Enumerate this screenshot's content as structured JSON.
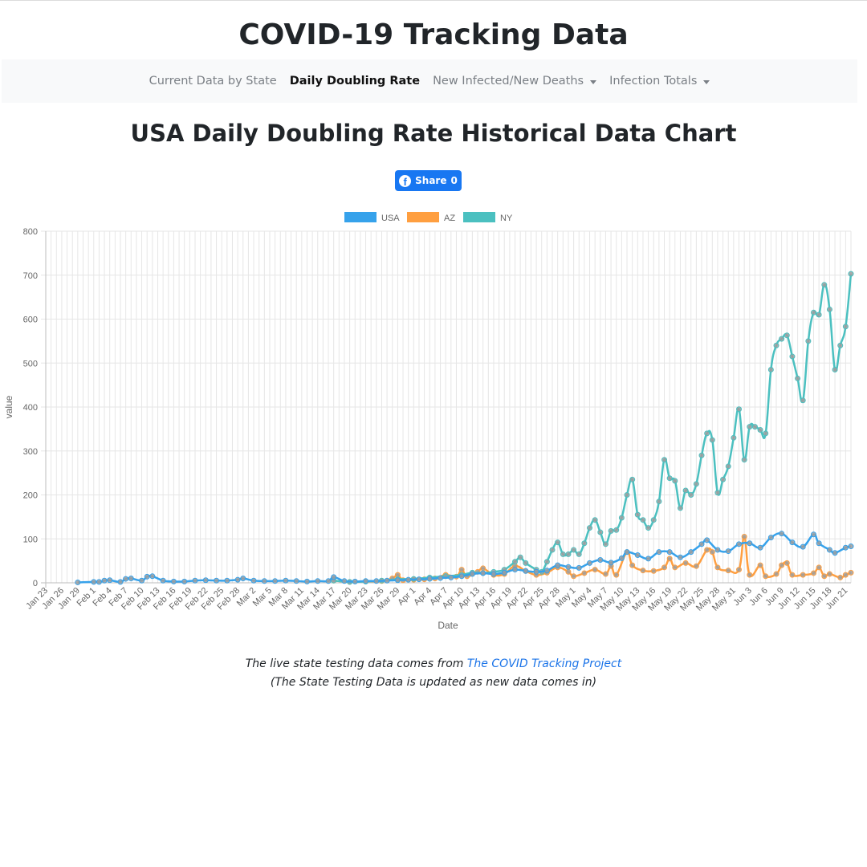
{
  "site": {
    "title": "COVID-19 Tracking Data"
  },
  "nav": {
    "items": [
      {
        "label": "Current Data by State",
        "active": false,
        "dropdown": false
      },
      {
        "label": "Daily Doubling Rate",
        "active": true,
        "dropdown": false
      },
      {
        "label": "New Infected/New Deaths",
        "active": false,
        "dropdown": true
      },
      {
        "label": "Infection Totals",
        "active": false,
        "dropdown": true
      }
    ]
  },
  "page": {
    "title": "USA Daily Doubling Rate Historical Data Chart"
  },
  "share": {
    "label": "Share",
    "count": "0",
    "icon": "facebook-icon"
  },
  "footer": {
    "line1_prefix": "The live state testing data comes from",
    "link_text": "The COVID Tracking Project",
    "line2": "(The State Testing Data is updated as new data comes in)"
  },
  "colors": {
    "usa": "#36a2eb",
    "az": "#ff9f40",
    "ny": "#4bc0c0",
    "link": "#1a73e8",
    "share": "#1877f2"
  },
  "chart_data": {
    "type": "line",
    "xlabel": "Date",
    "ylabel": "value",
    "ylim": [
      0,
      800
    ],
    "yticks": [
      0,
      100,
      200,
      300,
      400,
      500,
      600,
      700,
      800
    ],
    "grid": true,
    "legend_position": "top",
    "x_tick_labels": [
      "Jan 23",
      "Jan 26",
      "Jan 29",
      "Feb 1",
      "Feb 4",
      "Feb 7",
      "Feb 10",
      "Feb 13",
      "Feb 16",
      "Feb 19",
      "Feb 22",
      "Feb 25",
      "Feb 28",
      "Mar 2",
      "Mar 5",
      "Mar 8",
      "Mar 11",
      "Mar 14",
      "Mar 17",
      "Mar 20",
      "Mar 23",
      "Mar 26",
      "Mar 29",
      "Apr 1",
      "Apr 4",
      "Apr 7",
      "Apr 10",
      "Apr 13",
      "Apr 16",
      "Apr 19",
      "Apr 22",
      "Apr 25",
      "Apr 28",
      "May 1",
      "May 4",
      "May 7",
      "May 10",
      "May 13",
      "May 16",
      "May 19",
      "May 22",
      "May 25",
      "May 28",
      "May 31",
      "Jun 3",
      "Jun 6",
      "Jun 9",
      "Jun 12",
      "Jun 15",
      "Jun 18",
      "Jun 21"
    ],
    "series": [
      {
        "name": "USA",
        "color": "#36a2eb",
        "points": [
          [
            "Jan 29",
            1
          ],
          [
            "Feb 1",
            2
          ],
          [
            "Feb 2",
            2
          ],
          [
            "Feb 3",
            5
          ],
          [
            "Feb 4",
            6
          ],
          [
            "Feb 6",
            2
          ],
          [
            "Feb 7",
            9
          ],
          [
            "Feb 8",
            10
          ],
          [
            "Feb 10",
            5
          ],
          [
            "Feb 11",
            14
          ],
          [
            "Feb 12",
            15
          ],
          [
            "Feb 14",
            5
          ],
          [
            "Feb 16",
            3
          ],
          [
            "Feb 18",
            3
          ],
          [
            "Feb 20",
            5
          ],
          [
            "Feb 22",
            6
          ],
          [
            "Feb 24",
            5
          ],
          [
            "Feb 26",
            5
          ],
          [
            "Feb 28",
            7
          ],
          [
            "Feb 29",
            10
          ],
          [
            "Mar 2",
            5
          ],
          [
            "Mar 4",
            4
          ],
          [
            "Mar 6",
            4
          ],
          [
            "Mar 8",
            5
          ],
          [
            "Mar 10",
            4
          ],
          [
            "Mar 12",
            3
          ],
          [
            "Mar 14",
            4
          ],
          [
            "Mar 16",
            4
          ],
          [
            "Mar 17",
            13
          ],
          [
            "Mar 19",
            4
          ],
          [
            "Mar 21",
            3
          ],
          [
            "Mar 23",
            4
          ],
          [
            "Mar 25",
            4
          ],
          [
            "Mar 27",
            5
          ],
          [
            "Mar 29",
            6
          ],
          [
            "Mar 31",
            7
          ],
          [
            "Apr 2",
            8
          ],
          [
            "Apr 4",
            9
          ],
          [
            "Apr 6",
            11
          ],
          [
            "Apr 8",
            12
          ],
          [
            "Apr 10",
            15
          ],
          [
            "Apr 12",
            20
          ],
          [
            "Apr 14",
            22
          ],
          [
            "Apr 16",
            20
          ],
          [
            "Apr 18",
            23
          ],
          [
            "Apr 20",
            30
          ],
          [
            "Apr 22",
            27
          ],
          [
            "Apr 24",
            25
          ],
          [
            "Apr 26",
            28
          ],
          [
            "Apr 28",
            40
          ],
          [
            "Apr 30",
            36
          ],
          [
            "May 2",
            34
          ],
          [
            "May 4",
            45
          ],
          [
            "May 6",
            52
          ],
          [
            "May 8",
            46
          ],
          [
            "May 10",
            56
          ],
          [
            "May 11",
            70
          ],
          [
            "May 13",
            63
          ],
          [
            "May 15",
            55
          ],
          [
            "May 17",
            70
          ],
          [
            "May 19",
            70
          ],
          [
            "May 21",
            58
          ],
          [
            "May 23",
            70
          ],
          [
            "May 25",
            88
          ],
          [
            "May 26",
            97
          ],
          [
            "May 28",
            75
          ],
          [
            "May 30",
            72
          ],
          [
            "Jun 1",
            88
          ],
          [
            "Jun 3",
            90
          ],
          [
            "Jun 5",
            80
          ],
          [
            "Jun 7",
            103
          ],
          [
            "Jun 9",
            112
          ],
          [
            "Jun 11",
            92
          ],
          [
            "Jun 13",
            82
          ],
          [
            "Jun 15",
            110
          ],
          [
            "Jun 16",
            90
          ],
          [
            "Jun 18",
            75
          ],
          [
            "Jun 19",
            68
          ],
          [
            "Jun 21",
            80
          ],
          [
            "Jun 22",
            83
          ]
        ]
      },
      {
        "name": "AZ",
        "color": "#ff9f40",
        "points": [
          [
            "Mar 17",
            5
          ],
          [
            "Mar 20",
            2
          ],
          [
            "Mar 23",
            3
          ],
          [
            "Mar 26",
            4
          ],
          [
            "Mar 28",
            10
          ],
          [
            "Mar 29",
            18
          ],
          [
            "Mar 30",
            6
          ],
          [
            "Apr 1",
            7
          ],
          [
            "Apr 3",
            8
          ],
          [
            "Apr 5",
            10
          ],
          [
            "Apr 7",
            18
          ],
          [
            "Apr 9",
            14
          ],
          [
            "Apr 10",
            30
          ],
          [
            "Apr 11",
            15
          ],
          [
            "Apr 13",
            25
          ],
          [
            "Apr 14",
            33
          ],
          [
            "Apr 16",
            18
          ],
          [
            "Apr 18",
            20
          ],
          [
            "Apr 20",
            38
          ],
          [
            "Apr 22",
            27
          ],
          [
            "Apr 24",
            18
          ],
          [
            "Apr 26",
            23
          ],
          [
            "Apr 28",
            35
          ],
          [
            "Apr 30",
            25
          ],
          [
            "May 1",
            15
          ],
          [
            "May 3",
            22
          ],
          [
            "May 5",
            30
          ],
          [
            "May 7",
            20
          ],
          [
            "May 8",
            38
          ],
          [
            "May 9",
            18
          ],
          [
            "May 11",
            70
          ],
          [
            "May 12",
            40
          ],
          [
            "May 14",
            28
          ],
          [
            "May 16",
            27
          ],
          [
            "May 18",
            35
          ],
          [
            "May 19",
            55
          ],
          [
            "May 20",
            35
          ],
          [
            "May 22",
            45
          ],
          [
            "May 24",
            38
          ],
          [
            "May 26",
            75
          ],
          [
            "May 27",
            70
          ],
          [
            "May 28",
            35
          ],
          [
            "May 30",
            28
          ],
          [
            "Jun 1",
            30
          ],
          [
            "Jun 2",
            105
          ],
          [
            "Jun 3",
            18
          ],
          [
            "Jun 5",
            40
          ],
          [
            "Jun 6",
            15
          ],
          [
            "Jun 8",
            20
          ],
          [
            "Jun 9",
            40
          ],
          [
            "Jun 10",
            45
          ],
          [
            "Jun 11",
            18
          ],
          [
            "Jun 13",
            18
          ],
          [
            "Jun 15",
            22
          ],
          [
            "Jun 16",
            35
          ],
          [
            "Jun 17",
            15
          ],
          [
            "Jun 18",
            20
          ],
          [
            "Jun 20",
            12
          ],
          [
            "Jun 21",
            18
          ],
          [
            "Jun 22",
            23
          ]
        ]
      },
      {
        "name": "NY",
        "color": "#4bc0c0",
        "points": [
          [
            "Mar 17",
            5
          ],
          [
            "Mar 20",
            2
          ],
          [
            "Mar 23",
            3
          ],
          [
            "Mar 26",
            5
          ],
          [
            "Mar 29",
            8
          ],
          [
            "Apr 1",
            9
          ],
          [
            "Apr 4",
            12
          ],
          [
            "Apr 7",
            15
          ],
          [
            "Apr 10",
            18
          ],
          [
            "Apr 12",
            23
          ],
          [
            "Apr 14",
            22
          ],
          [
            "Apr 16",
            25
          ],
          [
            "Apr 18",
            30
          ],
          [
            "Apr 20",
            48
          ],
          [
            "Apr 21",
            58
          ],
          [
            "Apr 22",
            45
          ],
          [
            "Apr 24",
            30
          ],
          [
            "Apr 25",
            25
          ],
          [
            "Apr 26",
            48
          ],
          [
            "Apr 27",
            75
          ],
          [
            "Apr 28",
            92
          ],
          [
            "Apr 29",
            65
          ],
          [
            "Apr 30",
            65
          ],
          [
            "May 1",
            75
          ],
          [
            "May 2",
            65
          ],
          [
            "May 3",
            90
          ],
          [
            "May 4",
            125
          ],
          [
            "May 5",
            143
          ],
          [
            "May 6",
            115
          ],
          [
            "May 7",
            88
          ],
          [
            "May 8",
            118
          ],
          [
            "May 9",
            120
          ],
          [
            "May 10",
            148
          ],
          [
            "May 11",
            200
          ],
          [
            "May 12",
            235
          ],
          [
            "May 13",
            155
          ],
          [
            "May 14",
            143
          ],
          [
            "May 15",
            125
          ],
          [
            "May 16",
            143
          ],
          [
            "May 17",
            185
          ],
          [
            "May 18",
            280
          ],
          [
            "May 19",
            238
          ],
          [
            "May 20",
            232
          ],
          [
            "May 21",
            170
          ],
          [
            "May 22",
            210
          ],
          [
            "May 23",
            200
          ],
          [
            "May 24",
            225
          ],
          [
            "May 25",
            290
          ],
          [
            "May 26",
            340
          ],
          [
            "May 27",
            325
          ],
          [
            "May 28",
            205
          ],
          [
            "May 29",
            235
          ],
          [
            "May 30",
            265
          ],
          [
            "May 31",
            330
          ],
          [
            "Jun 1",
            395
          ],
          [
            "Jun 2",
            280
          ],
          [
            "Jun 3",
            355
          ],
          [
            "Jun 4",
            355
          ],
          [
            "Jun 5",
            348
          ],
          [
            "Jun 6",
            340
          ],
          [
            "Jun 7",
            485
          ],
          [
            "Jun 8",
            540
          ],
          [
            "Jun 9",
            555
          ],
          [
            "Jun 10",
            563
          ],
          [
            "Jun 11",
            515
          ],
          [
            "Jun 12",
            465
          ],
          [
            "Jun 13",
            415
          ],
          [
            "Jun 14",
            550
          ],
          [
            "Jun 15",
            615
          ],
          [
            "Jun 16",
            610
          ],
          [
            "Jun 17",
            678
          ],
          [
            "Jun 18",
            622
          ],
          [
            "Jun 19",
            485
          ],
          [
            "Jun 20",
            540
          ],
          [
            "Jun 21",
            583
          ],
          [
            "Jun 22",
            703
          ]
        ]
      }
    ]
  }
}
